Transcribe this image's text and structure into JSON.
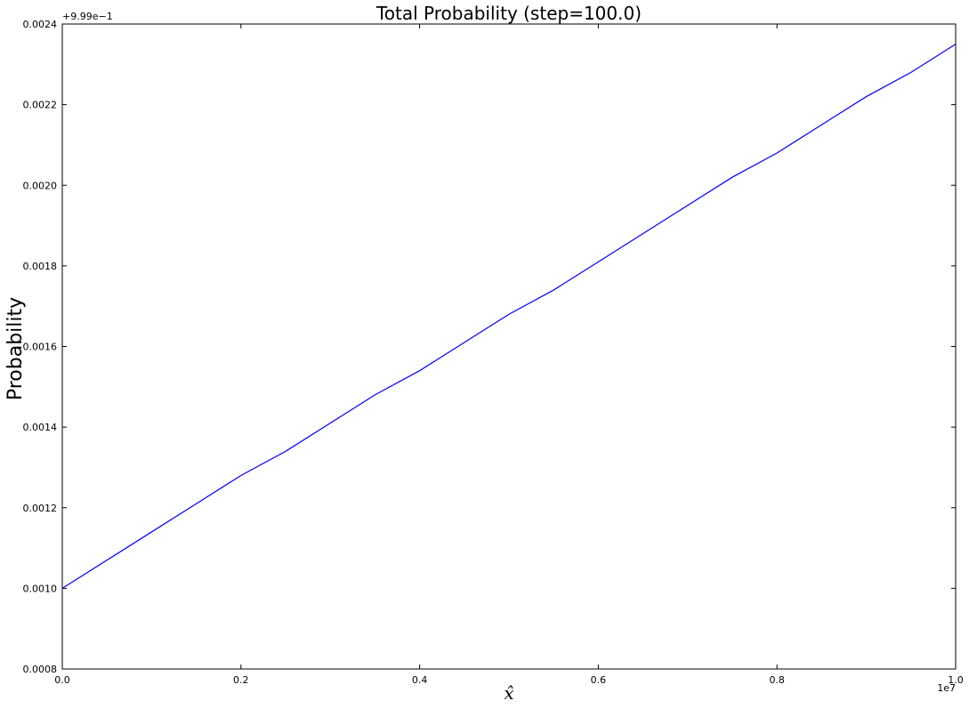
{
  "chart_data": {
    "type": "line",
    "title": "Total Probability (step=100.0)",
    "xlabel": "x̂",
    "ylabel": "Probability",
    "x_offset_label": "1e7",
    "y_offset_label": "+9.99e−1",
    "xlim": [
      0,
      1.0
    ],
    "ylim": [
      0.0008,
      0.0024
    ],
    "x_ticks": [
      "0.0",
      "0.2",
      "0.4",
      "0.6",
      "0.8",
      "1.0"
    ],
    "y_ticks": [
      "0.0008",
      "0.0010",
      "0.0012",
      "0.0014",
      "0.0016",
      "0.0018",
      "0.0020",
      "0.0022",
      "0.0024"
    ],
    "grid": false,
    "series": [
      {
        "color": "#0000ff",
        "x": [
          0.0,
          0.05,
          0.1,
          0.15,
          0.2,
          0.25,
          0.3,
          0.35,
          0.4,
          0.45,
          0.5,
          0.55,
          0.6,
          0.65,
          0.7,
          0.75,
          0.8,
          0.85,
          0.9,
          0.95,
          1.0
        ],
        "y": [
          0.001,
          0.00107,
          0.00114,
          0.00121,
          0.00128,
          0.00134,
          0.00141,
          0.00148,
          0.00154,
          0.00161,
          0.00168,
          0.00174,
          0.00181,
          0.00188,
          0.00195,
          0.00202,
          0.00208,
          0.00215,
          0.00222,
          0.00228,
          0.00235
        ]
      }
    ]
  }
}
